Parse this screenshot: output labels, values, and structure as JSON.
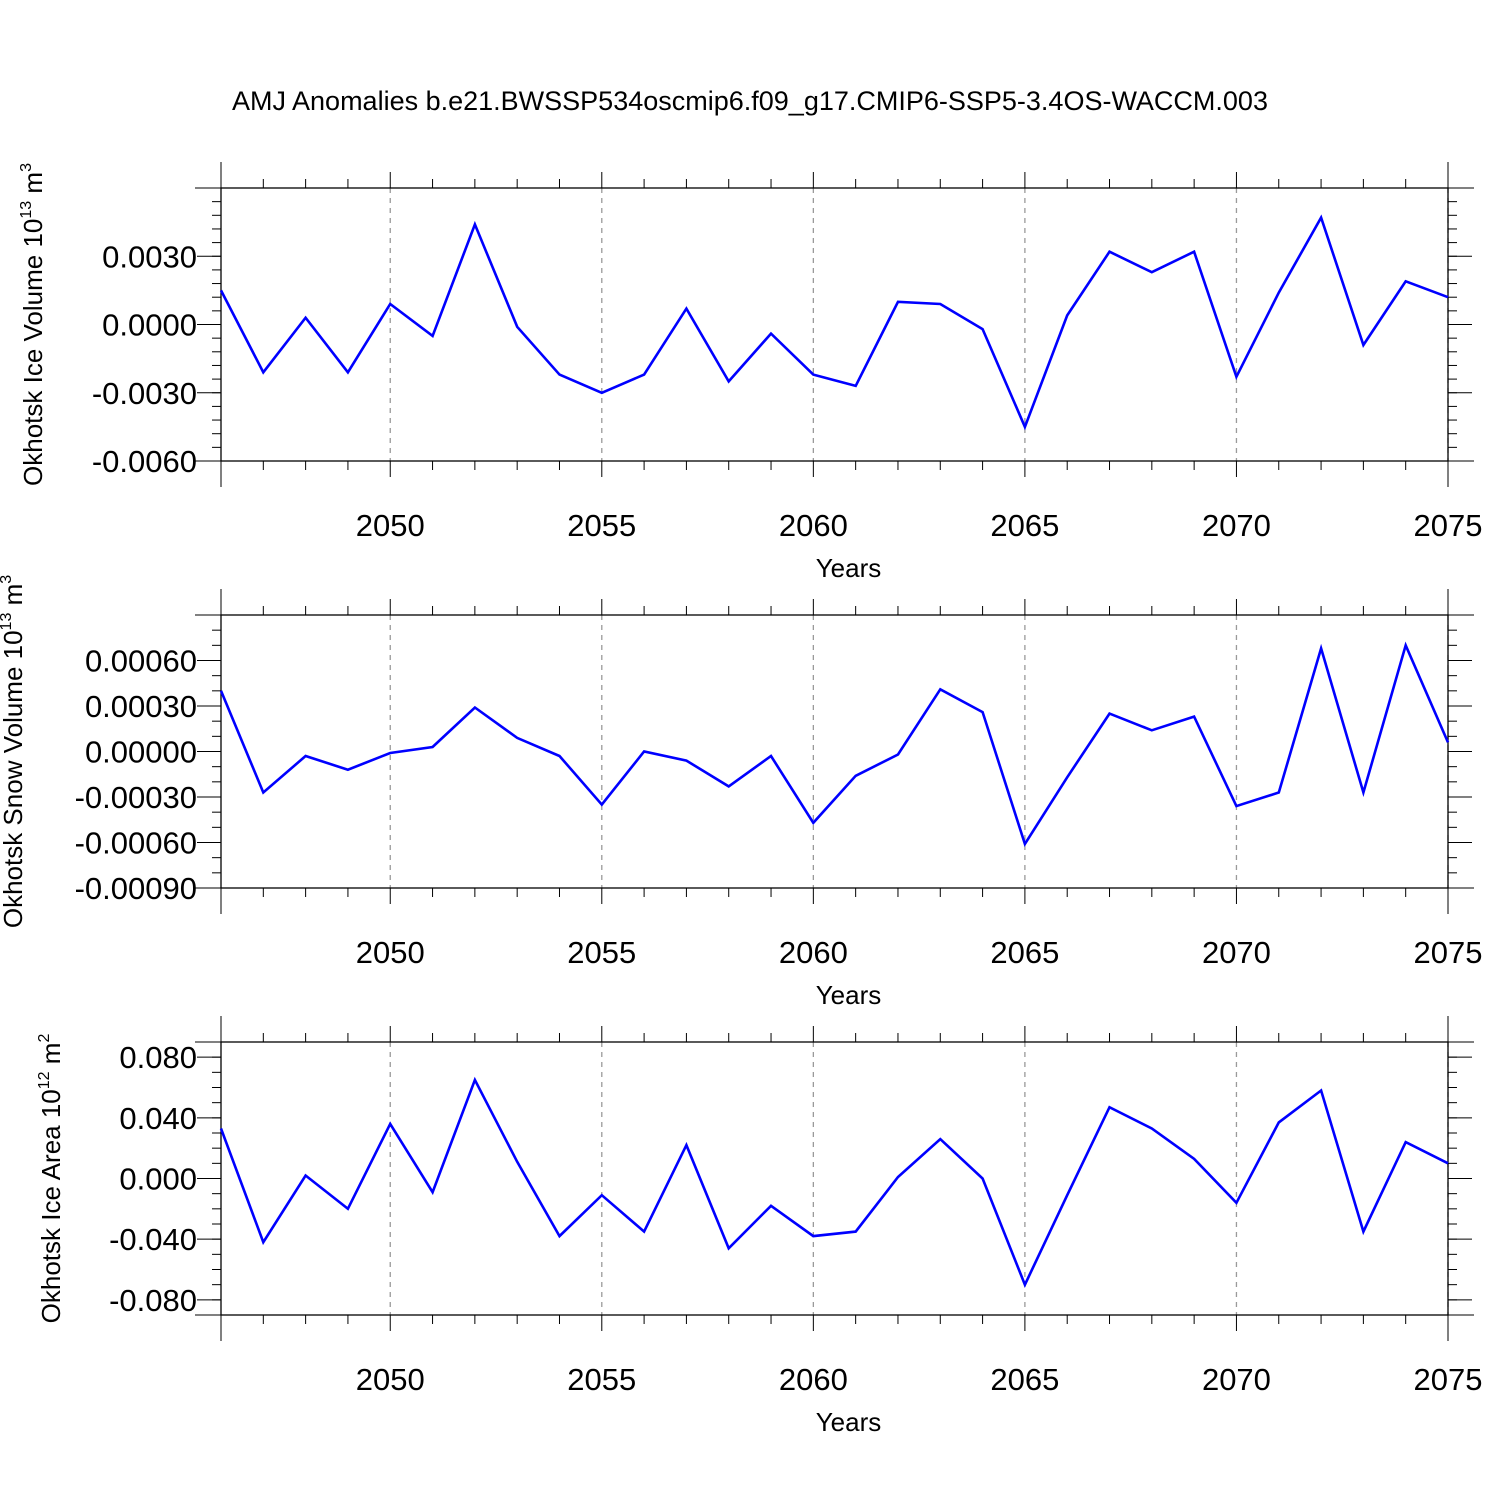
{
  "title": "AMJ Anomalies b.e21.BWSSP534oscmip6.f09_g17.CMIP6-SSP5-3.4OS-WACCM.003",
  "line_color": "#0000ff",
  "chart_data": [
    {
      "type": "line",
      "ylabel_main": "Okhotsk Ice Volume 10",
      "ylabel_exp": "13",
      "ylabel_unit": "m",
      "ylabel_unit_exp": "3",
      "xlabel": "Years",
      "xlim": [
        2046,
        2075
      ],
      "ylim": [
        -0.006,
        0.006
      ],
      "yticks": [
        "0.0030",
        "0.0000",
        "-0.0030",
        "-0.0060"
      ],
      "ytick_values": [
        0.003,
        0.0,
        -0.003,
        -0.006
      ],
      "yminor_step": 0.0006,
      "xticks": [
        "2050",
        "2055",
        "2060",
        "2065",
        "2070",
        "2075"
      ],
      "xtick_values": [
        2050,
        2055,
        2060,
        2065,
        2070,
        2075
      ],
      "grid": "vertical dashed at major x ticks",
      "x": [
        2046,
        2047,
        2048,
        2049,
        2050,
        2051,
        2052,
        2053,
        2054,
        2055,
        2056,
        2057,
        2058,
        2059,
        2060,
        2061,
        2062,
        2063,
        2064,
        2065,
        2066,
        2067,
        2068,
        2069,
        2070,
        2071,
        2072,
        2073,
        2074,
        2075
      ],
      "series": [
        {
          "values": [
            0.0015,
            -0.0021,
            0.0003,
            -0.0021,
            0.0009,
            -0.0005,
            0.0044,
            -0.0001,
            -0.0022,
            -0.003,
            -0.0022,
            0.0007,
            -0.0025,
            -0.0004,
            -0.0022,
            -0.0027,
            0.001,
            0.0009,
            -0.0002,
            -0.0045,
            0.0004,
            0.0032,
            0.0023,
            0.0032,
            -0.0023,
            0.0014,
            0.0047,
            -0.0009,
            0.0019,
            0.0012
          ]
        }
      ]
    },
    {
      "type": "line",
      "ylabel_main": "Okhotsk Snow Volume 10",
      "ylabel_exp": "13",
      "ylabel_unit": "m",
      "ylabel_unit_exp": "3",
      "xlabel": "Years",
      "xlim": [
        2046,
        2075
      ],
      "ylim": [
        -0.0009,
        0.0009
      ],
      "yticks": [
        "0.00060",
        "0.00030",
        "0.00000",
        "-0.00030",
        "-0.00060",
        "-0.00090"
      ],
      "ytick_values": [
        0.0006,
        0.0003,
        0.0,
        -0.0003,
        -0.0006,
        -0.0009
      ],
      "yminor_step": 0.0001,
      "xticks": [
        "2050",
        "2055",
        "2060",
        "2065",
        "2070",
        "2075"
      ],
      "xtick_values": [
        2050,
        2055,
        2060,
        2065,
        2070,
        2075
      ],
      "grid": "vertical dashed at major x ticks",
      "x": [
        2046,
        2047,
        2048,
        2049,
        2050,
        2051,
        2052,
        2053,
        2054,
        2055,
        2056,
        2057,
        2058,
        2059,
        2060,
        2061,
        2062,
        2063,
        2064,
        2065,
        2066,
        2067,
        2068,
        2069,
        2070,
        2071,
        2072,
        2073,
        2074,
        2075
      ],
      "series": [
        {
          "values": [
            0.0004,
            -0.00027,
            -3e-05,
            -0.00012,
            -1e-05,
            3e-05,
            0.00029,
            9e-05,
            -3e-05,
            -0.00035,
            0.0,
            -6e-05,
            -0.00023,
            -3e-05,
            -0.00047,
            -0.00016,
            -2e-05,
            0.00041,
            0.00026,
            -0.00061,
            -0.00017,
            0.00025,
            0.00014,
            0.00023,
            -0.00036,
            -0.00027,
            0.00068,
            -0.00027,
            0.0007,
            6e-05
          ]
        }
      ]
    },
    {
      "type": "line",
      "ylabel_main": "Okhotsk Ice Area 10",
      "ylabel_exp": "12",
      "ylabel_unit": "m",
      "ylabel_unit_exp": "2",
      "xlabel": "Years",
      "xlim": [
        2046,
        2075
      ],
      "ylim": [
        -0.09,
        0.09
      ],
      "yticks": [
        "0.080",
        "0.040",
        "0.000",
        "-0.040",
        "-0.080"
      ],
      "ytick_values": [
        0.08,
        0.04,
        0.0,
        -0.04,
        -0.08
      ],
      "yminor_step": 0.01,
      "xticks": [
        "2050",
        "2055",
        "2060",
        "2065",
        "2070",
        "2075"
      ],
      "xtick_values": [
        2050,
        2055,
        2060,
        2065,
        2070,
        2075
      ],
      "grid": "vertical dashed at major x ticks",
      "x": [
        2046,
        2047,
        2048,
        2049,
        2050,
        2051,
        2052,
        2053,
        2054,
        2055,
        2056,
        2057,
        2058,
        2059,
        2060,
        2061,
        2062,
        2063,
        2064,
        2065,
        2066,
        2067,
        2068,
        2069,
        2070,
        2071,
        2072,
        2073,
        2074,
        2075
      ],
      "series": [
        {
          "values": [
            0.033,
            -0.042,
            0.002,
            -0.02,
            0.036,
            -0.009,
            0.065,
            0.011,
            -0.038,
            -0.011,
            -0.035,
            0.022,
            -0.046,
            -0.018,
            -0.038,
            -0.035,
            0.001,
            0.026,
            0.0,
            -0.07,
            -0.011,
            0.047,
            0.033,
            0.013,
            -0.016,
            0.037,
            0.058,
            -0.035,
            0.024,
            0.01
          ]
        }
      ]
    }
  ]
}
